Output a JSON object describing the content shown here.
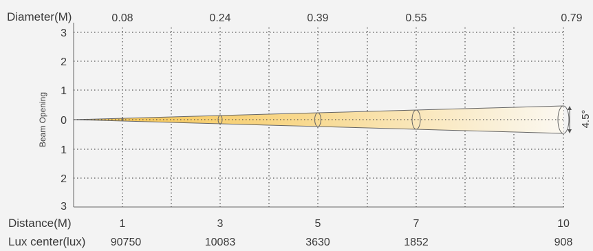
{
  "diameter": {
    "label": "Diameter(M)",
    "values": [
      "0.08",
      "0.24",
      "0.39",
      "0.55",
      "0.79"
    ]
  },
  "distance": {
    "label": "Distance(M)",
    "values": [
      "1",
      "3",
      "5",
      "7",
      "10"
    ]
  },
  "lux": {
    "label": "Lux center(lux)",
    "values": [
      "90750",
      "10083",
      "3630",
      "1852",
      "908"
    ]
  },
  "y_axis": {
    "label": "Beam Opening",
    "ticks": [
      "3",
      "2",
      "1",
      "0",
      "1",
      "2",
      "3"
    ]
  },
  "beam": {
    "angle_label": "4.5°",
    "color_near": "#f5c24a",
    "color_far": "#fbf8f1"
  },
  "colors": {
    "background": "#f3f3f3",
    "grid": "#555555",
    "text": "#3a3a3a"
  }
}
